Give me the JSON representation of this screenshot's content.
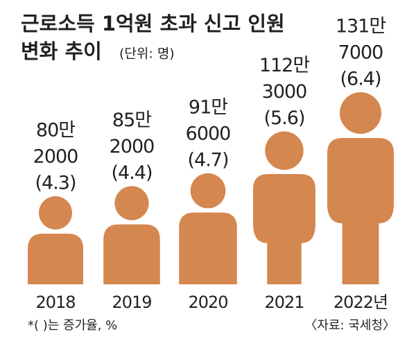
{
  "chart_data": {
    "type": "pictogram",
    "title": "근로소득 1억원 초과 신고 인원",
    "subtitle": "변화 추이",
    "unit": "(단위: 명)",
    "categories": [
      "2018",
      "2019",
      "2020",
      "2021",
      "2022년"
    ],
    "values": [
      802000,
      852000,
      916000,
      1123000,
      1317000
    ],
    "value_labels": [
      [
        "80만",
        "2000"
      ],
      [
        "85만",
        "2000"
      ],
      [
        "91만",
        "6000"
      ],
      [
        "112만",
        "3000"
      ],
      [
        "131만",
        "7000"
      ]
    ],
    "growth": {
      "values": [
        4.3,
        4.4,
        4.7,
        5.6,
        6.4
      ],
      "value_labels": [
        "(4.3)",
        "(4.4)",
        "(4.7)",
        "(5.6)",
        "(6.4)"
      ]
    },
    "color": "#d4874f",
    "note": "*( )는 증가율, %",
    "source": "〈자료: 국세청〉"
  }
}
